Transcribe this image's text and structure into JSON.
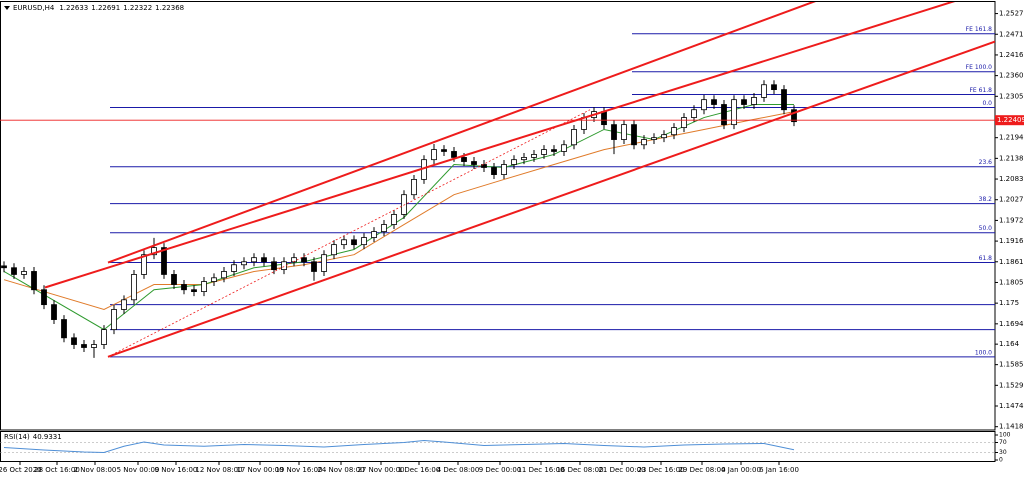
{
  "chart_data": [
    {
      "type": "candlestick",
      "title": "EURUSD,H4",
      "title_values": [
        1.22633,
        1.22691,
        1.22322,
        1.22368
      ],
      "xlim": [
        -0.4,
        99.1
      ],
      "ylim": [
        1.1415,
        1.255
      ],
      "yticks": [
        1.2527,
        1.24715,
        1.2416,
        1.23605,
        1.2305,
        1.2194,
        1.21385,
        1.2083,
        1.20275,
        1.1972,
        1.19165,
        1.1861,
        1.18055,
        1.175,
        1.16945,
        1.164,
        1.1585,
        1.15295,
        1.1474,
        1.14185
      ],
      "xticks": [
        {
          "value": 1.6,
          "label": "26 Oct 2020"
        },
        {
          "value": 5.3,
          "label": "28 Oct 16:00"
        },
        {
          "value": 9.1,
          "label": "2 Nov 08:00"
        },
        {
          "value": 13.4,
          "label": "5 Nov 00:00"
        },
        {
          "value": 17.2,
          "label": "9 Nov 16:00"
        },
        {
          "value": 21.5,
          "label": "12 Nov 08:00"
        },
        {
          "value": 25.6,
          "label": "17 Nov 00:00"
        },
        {
          "value": 29.5,
          "label": "19 Nov 16:00"
        },
        {
          "value": 33.7,
          "label": "24 Nov 08:00"
        },
        {
          "value": 37.7,
          "label": "27 Nov 00:00"
        },
        {
          "value": 41.5,
          "label": "1 Dec 16:00"
        },
        {
          "value": 45.4,
          "label": "4 Dec 08:00"
        },
        {
          "value": 49.6,
          "label": "9 Dec 00:00"
        },
        {
          "value": 53.7,
          "label": "11 Dec 16:00"
        },
        {
          "value": 57.6,
          "label": "16 Dec 08:00"
        },
        {
          "value": 61.8,
          "label": "21 Dec 00:00"
        },
        {
          "value": 65.7,
          "label": "23 Dec 16:00"
        },
        {
          "value": 69.8,
          "label": "29 Dec 08:00"
        },
        {
          "value": 73.7,
          "label": "4 Jan 00:00"
        },
        {
          "value": 77.5,
          "label": "6 Jan 16:00"
        }
      ],
      "candles": [
        [
          1.185,
          1.1862,
          1.1833,
          1.1845
        ],
        [
          1.1845,
          1.1857,
          1.1815,
          1.1827
        ],
        [
          1.1827,
          1.1847,
          1.1815,
          1.1835
        ],
        [
          1.1835,
          1.1847,
          1.1774,
          1.1786
        ],
        [
          1.1786,
          1.1798,
          1.1734,
          1.1746
        ],
        [
          1.1746,
          1.1758,
          1.1694,
          1.1706
        ],
        [
          1.1706,
          1.1718,
          1.1645,
          1.1657
        ],
        [
          1.1657,
          1.1669,
          1.1627,
          1.1639
        ],
        [
          1.1639,
          1.1651,
          1.1619,
          1.1631
        ],
        [
          1.1631,
          1.1651,
          1.1603,
          1.1639
        ],
        [
          1.1639,
          1.1691,
          1.1627,
          1.1679
        ],
        [
          1.1679,
          1.1745,
          1.1667,
          1.1733
        ],
        [
          1.1733,
          1.1771,
          1.1721,
          1.1759
        ],
        [
          1.1759,
          1.1839,
          1.1747,
          1.1827
        ],
        [
          1.1827,
          1.1892,
          1.1815,
          1.188
        ],
        [
          1.188,
          1.1925,
          1.1868,
          1.1899
        ],
        [
          1.1899,
          1.1911,
          1.1815,
          1.1827
        ],
        [
          1.1827,
          1.1839,
          1.1788,
          1.18
        ],
        [
          1.18,
          1.1812,
          1.1774,
          1.1786
        ],
        [
          1.1786,
          1.1798,
          1.1769,
          1.1781
        ],
        [
          1.1781,
          1.182,
          1.1769,
          1.1808
        ],
        [
          1.1808,
          1.183,
          1.1796,
          1.1818
        ],
        [
          1.1818,
          1.1847,
          1.1806,
          1.1835
        ],
        [
          1.1835,
          1.1865,
          1.1823,
          1.1853
        ],
        [
          1.1853,
          1.1873,
          1.1841,
          1.1861
        ],
        [
          1.1861,
          1.1884,
          1.1849,
          1.1872
        ],
        [
          1.1872,
          1.1884,
          1.1849,
          1.1861
        ],
        [
          1.1861,
          1.1873,
          1.1828,
          1.184
        ],
        [
          1.184,
          1.1873,
          1.1828,
          1.1861
        ],
        [
          1.1861,
          1.1884,
          1.1849,
          1.1872
        ],
        [
          1.1872,
          1.1884,
          1.1849,
          1.1861
        ],
        [
          1.1861,
          1.1873,
          1.181,
          1.1835
        ],
        [
          1.1835,
          1.1892,
          1.1823,
          1.188
        ],
        [
          1.188,
          1.1919,
          1.1868,
          1.1907
        ],
        [
          1.1907,
          1.1932,
          1.1895,
          1.192
        ],
        [
          1.192,
          1.1932,
          1.1895,
          1.1907
        ],
        [
          1.1907,
          1.1938,
          1.1895,
          1.1926
        ],
        [
          1.1926,
          1.1954,
          1.1914,
          1.1942
        ],
        [
          1.1942,
          1.1973,
          1.193,
          1.1961
        ],
        [
          1.1961,
          1.2,
          1.1949,
          1.1988
        ],
        [
          1.1988,
          1.2053,
          1.1976,
          1.2041
        ],
        [
          1.2041,
          1.2094,
          1.2029,
          1.2082
        ],
        [
          1.2082,
          1.2147,
          1.207,
          1.2135
        ],
        [
          1.2135,
          1.2177,
          1.2123,
          1.2162
        ],
        [
          1.2162,
          1.2174,
          1.2145,
          1.2157
        ],
        [
          1.2157,
          1.2169,
          1.2129,
          1.2141
        ],
        [
          1.2141,
          1.2153,
          1.2118,
          1.213
        ],
        [
          1.213,
          1.2142,
          1.211,
          1.2122
        ],
        [
          1.2122,
          1.2134,
          1.2102,
          1.2114
        ],
        [
          1.2114,
          1.2126,
          1.2083,
          1.2095
        ],
        [
          1.2095,
          1.2134,
          1.2083,
          1.2122
        ],
        [
          1.2122,
          1.2147,
          1.211,
          1.2135
        ],
        [
          1.2135,
          1.2153,
          1.2123,
          1.2141
        ],
        [
          1.2141,
          1.2161,
          1.2129,
          1.2149
        ],
        [
          1.2149,
          1.2174,
          1.2137,
          1.2162
        ],
        [
          1.2162,
          1.2174,
          1.2145,
          1.2157
        ],
        [
          1.2157,
          1.2187,
          1.2145,
          1.2175
        ],
        [
          1.2175,
          1.2228,
          1.2163,
          1.2216
        ],
        [
          1.2216,
          1.226,
          1.2204,
          1.2248
        ],
        [
          1.2248,
          1.2276,
          1.2236,
          1.2264
        ],
        [
          1.2264,
          1.2276,
          1.2217,
          1.2229
        ],
        [
          1.2229,
          1.2241,
          1.215,
          1.2189
        ],
        [
          1.2189,
          1.2241,
          1.2177,
          1.2229
        ],
        [
          1.2229,
          1.2241,
          1.2163,
          1.2175
        ],
        [
          1.2175,
          1.2201,
          1.2163,
          1.2189
        ],
        [
          1.2189,
          1.2206,
          1.2177,
          1.2194
        ],
        [
          1.2194,
          1.2214,
          1.2182,
          1.2202
        ],
        [
          1.2202,
          1.2233,
          1.219,
          1.2221
        ],
        [
          1.2221,
          1.226,
          1.2209,
          1.2248
        ],
        [
          1.2248,
          1.2281,
          1.2236,
          1.2269
        ],
        [
          1.2269,
          1.2309,
          1.2257,
          1.2296
        ],
        [
          1.2296,
          1.2308,
          1.2271,
          1.2283
        ],
        [
          1.2283,
          1.2295,
          1.2217,
          1.2229
        ],
        [
          1.2229,
          1.2308,
          1.2217,
          1.2296
        ],
        [
          1.2296,
          1.2308,
          1.2271,
          1.2283
        ],
        [
          1.2283,
          1.2314,
          1.2271,
          1.2302
        ],
        [
          1.2302,
          1.2348,
          1.229,
          1.2336
        ],
        [
          1.2336,
          1.2348,
          1.2311,
          1.2323
        ],
        [
          1.2323,
          1.2335,
          1.2257,
          1.2269
        ],
        [
          1.2269,
          1.2281,
          1.2225,
          1.2237
        ]
      ],
      "ma": [
        {
          "color": "#e07b2a",
          "x": [
            0,
            10,
            15,
            20,
            25,
            30,
            35,
            40,
            45,
            50,
            55,
            60,
            65,
            70,
            75,
            79
          ],
          "values": [
            1.1813,
            1.1733,
            1.18,
            1.18,
            1.1835,
            1.1853,
            1.188,
            1.1961,
            1.2041,
            1.2082,
            1.2122,
            1.2162,
            1.2189,
            1.2216,
            1.2243,
            1.2264
          ]
        },
        {
          "color": "#2e9a2e",
          "x": [
            0,
            10,
            15,
            20,
            25,
            30,
            35,
            40,
            45,
            50,
            55,
            60,
            65,
            70,
            75,
            79
          ],
          "values": [
            1.1835,
            1.1679,
            1.1786,
            1.18,
            1.1845,
            1.1861,
            1.1894,
            1.198,
            1.2122,
            1.2114,
            1.2149,
            1.2216,
            1.2189,
            1.2248,
            1.2283,
            1.2283
          ]
        }
      ],
      "channels": [
        {
          "color": "#ee1c1c",
          "dashed": false,
          "x": [
            10.4,
            81.6
          ],
          "values": [
            1.1859,
            1.2565
          ]
        },
        {
          "color": "#ee1c1c",
          "dashed": false,
          "x": [
            4.1,
            95.6
          ],
          "values": [
            1.1792,
            1.2565
          ]
        },
        {
          "color": "#ee1c1c",
          "dashed": false,
          "x": [
            10.4,
            99.1
          ],
          "values": [
            1.1606,
            1.2452
          ]
        },
        {
          "color": "#ee1c1c",
          "dashed": true,
          "x": [
            10.4,
            58.6
          ],
          "values": [
            1.1606,
            1.2269
          ]
        }
      ],
      "fib_color": "#1a1aa8",
      "retracement": {
        "from": 10.6,
        "levels": [
          1.2275,
          1.2116,
          1.2017,
          1.1939,
          1.1859,
          1.1746,
          1.1679,
          1.1606
        ],
        "labels": [
          "0.0",
          "23.6",
          "38.2",
          "50.0",
          "61.8",
          null,
          null,
          "100.0"
        ]
      },
      "expansion": {
        "from": 62.8,
        "levels": [
          1.2473,
          1.2371,
          1.231
        ],
        "labels": [
          "FE 161.8",
          "FE 100.0",
          "FE 61.8"
        ]
      },
      "last_price": 1.22409,
      "last_price_color": "#ee1c1c"
    },
    {
      "type": "line",
      "title": "RSI(14)",
      "last_value": 40.9331,
      "color": "#4f8fd6",
      "xlim": [
        -0.4,
        99.1
      ],
      "ylim": [
        0,
        100
      ],
      "yticks": [
        0,
        30,
        70,
        100
      ],
      "levels": [
        30,
        70
      ],
      "x": [
        0,
        4,
        8,
        10,
        12,
        14,
        16,
        20,
        24,
        28,
        32,
        36,
        40,
        42,
        44,
        48,
        52,
        56,
        60,
        64,
        68,
        72,
        76,
        79
      ],
      "values": [
        50,
        40,
        32,
        30,
        55,
        72,
        60,
        55,
        62,
        58,
        52,
        62,
        70,
        78,
        72,
        58,
        62,
        66,
        58,
        52,
        60,
        64,
        66,
        40.9331
      ]
    }
  ]
}
